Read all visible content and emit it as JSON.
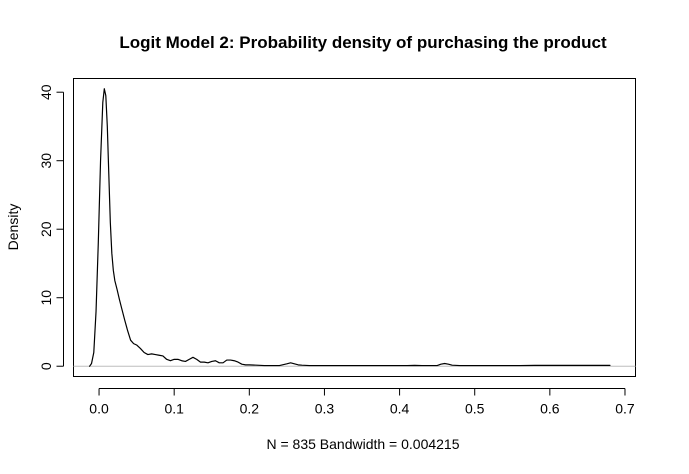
{
  "chart_data": {
    "type": "line",
    "title": "Logit Model 2: Probability density of purchasing the product",
    "xlabel": "N = 835   Bandwidth = 0.004215",
    "ylabel": "Density",
    "xlim": [
      -0.034,
      0.714
    ],
    "ylim": [
      -1.5,
      42
    ],
    "x_ticks": [
      0.0,
      0.1,
      0.2,
      0.3,
      0.4,
      0.5,
      0.6,
      0.7
    ],
    "x_tick_labels": [
      "0.0",
      "0.1",
      "0.2",
      "0.3",
      "0.4",
      "0.5",
      "0.6",
      "0.7"
    ],
    "y_ticks": [
      0,
      10,
      20,
      30,
      40
    ],
    "y_tick_labels": [
      "0",
      "10",
      "20",
      "30",
      "40"
    ],
    "grid": false,
    "zero_line": true,
    "colors": {
      "line": "#000000",
      "axis": "#000000",
      "zero_line": "#bdbdbd",
      "background": "#ffffff"
    },
    "series": [
      {
        "x": [
          -0.0125,
          -0.01,
          -0.007,
          -0.004,
          -0.001,
          0.002,
          0.005,
          0.007,
          0.009,
          0.011,
          0.013,
          0.015,
          0.017,
          0.019,
          0.021,
          0.024,
          0.027,
          0.03,
          0.034,
          0.038,
          0.042,
          0.046,
          0.05,
          0.055,
          0.06,
          0.065,
          0.07,
          0.075,
          0.08,
          0.085,
          0.09,
          0.095,
          0.1,
          0.105,
          0.11,
          0.115,
          0.12,
          0.125,
          0.13,
          0.135,
          0.14,
          0.145,
          0.15,
          0.155,
          0.16,
          0.165,
          0.17,
          0.175,
          0.18,
          0.185,
          0.19,
          0.195,
          0.2,
          0.21,
          0.22,
          0.23,
          0.24,
          0.25,
          0.255,
          0.26,
          0.265,
          0.27,
          0.28,
          0.29,
          0.3,
          0.31,
          0.32,
          0.33,
          0.34,
          0.35,
          0.36,
          0.37,
          0.38,
          0.39,
          0.4,
          0.41,
          0.42,
          0.43,
          0.44,
          0.45,
          0.455,
          0.46,
          0.465,
          0.47,
          0.48,
          0.5,
          0.52,
          0.54,
          0.56,
          0.58,
          0.6,
          0.62,
          0.64,
          0.66,
          0.68
        ],
        "y": [
          0.0,
          0.4,
          2.0,
          8.0,
          18.0,
          30.0,
          38.5,
          40.5,
          39.5,
          35.0,
          28.0,
          21.0,
          16.5,
          14.0,
          12.5,
          11.2,
          9.8,
          8.5,
          6.8,
          5.2,
          3.8,
          3.3,
          3.1,
          2.6,
          2.0,
          1.7,
          1.8,
          1.7,
          1.6,
          1.5,
          1.0,
          0.8,
          1.0,
          1.0,
          0.8,
          0.7,
          1.0,
          1.3,
          1.0,
          0.6,
          0.6,
          0.5,
          0.7,
          0.8,
          0.5,
          0.5,
          0.9,
          0.9,
          0.8,
          0.6,
          0.3,
          0.2,
          0.2,
          0.15,
          0.1,
          0.1,
          0.1,
          0.35,
          0.5,
          0.35,
          0.2,
          0.15,
          0.1,
          0.1,
          0.1,
          0.1,
          0.1,
          0.1,
          0.1,
          0.1,
          0.1,
          0.1,
          0.1,
          0.1,
          0.1,
          0.1,
          0.12,
          0.1,
          0.1,
          0.1,
          0.3,
          0.4,
          0.3,
          0.15,
          0.1,
          0.1,
          0.1,
          0.1,
          0.1,
          0.12,
          0.12,
          0.12,
          0.12,
          0.12,
          0.12
        ]
      }
    ]
  }
}
